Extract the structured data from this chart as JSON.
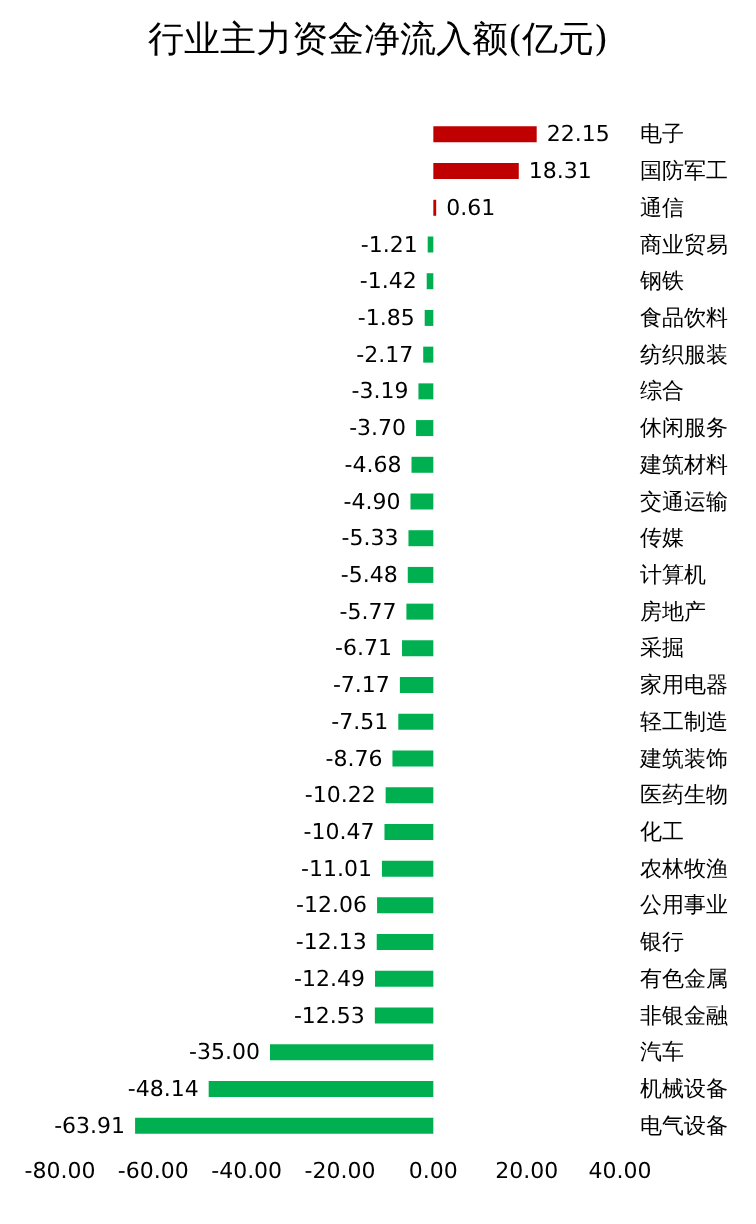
{
  "chart_data": {
    "type": "bar",
    "orientation": "horizontal",
    "title": "行业主力资金净流入额(亿元)",
    "categories": [
      "电子",
      "国防军工",
      "通信",
      "商业贸易",
      "钢铁",
      "食品饮料",
      "纺织服装",
      "综合",
      "休闲服务",
      "建筑材料",
      "交通运输",
      "传媒",
      "计算机",
      "房地产",
      "采掘",
      "家用电器",
      "轻工制造",
      "建筑装饰",
      "医药生物",
      "化工",
      "农林牧渔",
      "公用事业",
      "银行",
      "有色金属",
      "非银金融",
      "汽车",
      "机械设备",
      "电气设备"
    ],
    "values": [
      22.15,
      18.31,
      0.61,
      -1.21,
      -1.42,
      -1.85,
      -2.17,
      -3.19,
      -3.7,
      -4.68,
      -4.9,
      -5.33,
      -5.48,
      -5.77,
      -6.71,
      -7.17,
      -7.51,
      -8.76,
      -10.22,
      -10.47,
      -11.01,
      -12.06,
      -12.13,
      -12.49,
      -12.53,
      -35.0,
      -48.14,
      -63.91
    ],
    "colors": [
      "#c00000",
      "#c00000",
      "#c00000",
      "#00b050",
      "#00b050",
      "#00b050",
      "#00b050",
      "#00b050",
      "#00b050",
      "#00b050",
      "#00b050",
      "#00b050",
      "#00b050",
      "#00b050",
      "#00b050",
      "#00b050",
      "#00b050",
      "#00b050",
      "#00b050",
      "#00b050",
      "#00b050",
      "#00b050",
      "#00b050",
      "#00b050",
      "#00b050",
      "#00b050",
      "#00b050",
      "#00b050"
    ],
    "value_labels": [
      "22.15",
      "18.31",
      "0.61",
      "-1.21",
      "-1.42",
      "-1.85",
      "-2.17",
      "-3.19",
      "-3.70",
      "-4.68",
      "-4.90",
      "-5.33",
      "-5.48",
      "-5.77",
      "-6.71",
      "-7.17",
      "-7.51",
      "-8.76",
      "-10.22",
      "-10.47",
      "-11.01",
      "-12.06",
      "-12.13",
      "-12.49",
      "-12.53",
      "-35.00",
      "-48.14",
      "-63.91"
    ],
    "xlim": [
      -80,
      40
    ],
    "xticks": [
      {
        "value": -80,
        "label": "-80.00"
      },
      {
        "value": -60,
        "label": "-60.00"
      },
      {
        "value": -40,
        "label": "-40.00"
      },
      {
        "value": -20,
        "label": "-20.00"
      },
      {
        "value": 0,
        "label": "0.00"
      },
      {
        "value": 20,
        "label": "20.00"
      },
      {
        "value": 40,
        "label": "40.00"
      }
    ],
    "grid": false
  }
}
